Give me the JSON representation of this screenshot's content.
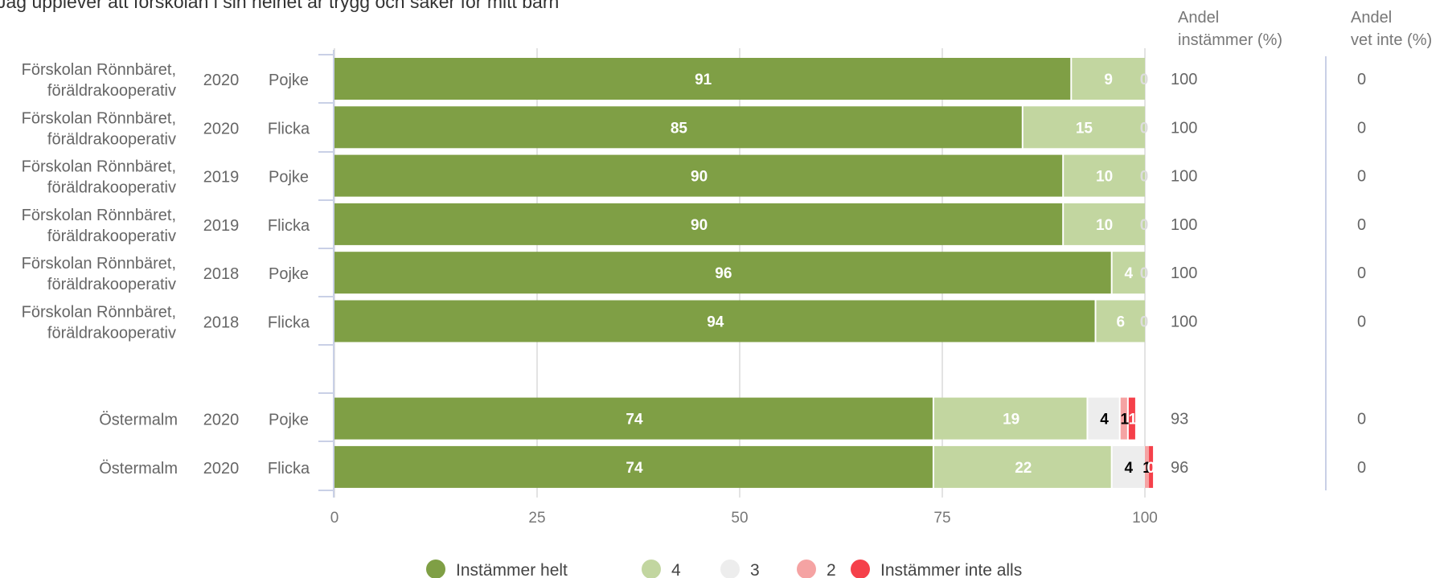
{
  "title": "Jag upplever att förskolan i sin helhet är trygg och säker för mitt barn",
  "columns": {
    "andel_instammer": [
      "Andel",
      "instämmer (%)"
    ],
    "andel_vet_inte": [
      "Andel",
      "vet inte (%)"
    ]
  },
  "colors": {
    "Instämmer helt": "#7f9f45",
    "4": "#c2d6a0",
    "3": "#ededed",
    "2": "#f5a3a3",
    "Instämmer inte alls": "#f5404a",
    "gridline": "#e3e3e3",
    "axis_tick": "#c9d0e6"
  },
  "chart_data": {
    "type": "bar",
    "orientation": "horizontal",
    "stacked": true,
    "title": "Jag upplever att förskolan i sin helhet är trygg och säker för mitt barn",
    "xlim": [
      0,
      100
    ],
    "x_ticks": [
      "0",
      "25",
      "50",
      "75",
      "100"
    ],
    "legend_position": "bottom",
    "grid": true,
    "series_names": [
      "Instämmer helt",
      "4",
      "3",
      "2",
      "Instämmer inte alls"
    ],
    "rows": [
      {
        "unit": [
          "Förskolan Rönnbäret,",
          "föräldrakooperativ"
        ],
        "year": "2020",
        "gender": "Pojke",
        "values": [
          91,
          9,
          0,
          0,
          0
        ],
        "labels": [
          "91",
          "9",
          "0",
          "",
          ""
        ],
        "andel_instammer": "100",
        "andel_vet_inte": "0",
        "gap_before": false
      },
      {
        "unit": [
          "Förskolan Rönnbäret,",
          "föräldrakooperativ"
        ],
        "year": "2020",
        "gender": "Flicka",
        "values": [
          85,
          15,
          0,
          0,
          0
        ],
        "labels": [
          "85",
          "15",
          "0",
          "",
          ""
        ],
        "andel_instammer": "100",
        "andel_vet_inte": "0",
        "gap_before": false
      },
      {
        "unit": [
          "Förskolan Rönnbäret,",
          "föräldrakooperativ"
        ],
        "year": "2019",
        "gender": "Pojke",
        "values": [
          90,
          10,
          0,
          0,
          0
        ],
        "labels": [
          "90",
          "10",
          "0",
          "",
          ""
        ],
        "andel_instammer": "100",
        "andel_vet_inte": "0",
        "gap_before": false
      },
      {
        "unit": [
          "Förskolan Rönnbäret,",
          "föräldrakooperativ"
        ],
        "year": "2019",
        "gender": "Flicka",
        "values": [
          90,
          10,
          0,
          0,
          0
        ],
        "labels": [
          "90",
          "10",
          "0",
          "",
          ""
        ],
        "andel_instammer": "100",
        "andel_vet_inte": "0",
        "gap_before": false
      },
      {
        "unit": [
          "Förskolan Rönnbäret,",
          "föräldrakooperativ"
        ],
        "year": "2018",
        "gender": "Pojke",
        "values": [
          96,
          4,
          0,
          0,
          0
        ],
        "labels": [
          "96",
          "4",
          "0",
          "",
          ""
        ],
        "andel_instammer": "100",
        "andel_vet_inte": "0",
        "gap_before": false
      },
      {
        "unit": [
          "Förskolan Rönnbäret,",
          "föräldrakooperativ"
        ],
        "year": "2018",
        "gender": "Flicka",
        "values": [
          94,
          6,
          0,
          0,
          0
        ],
        "labels": [
          "94",
          "6",
          "0",
          "",
          ""
        ],
        "andel_instammer": "100",
        "andel_vet_inte": "0",
        "gap_before": false
      },
      {
        "unit": [
          "Östermalm"
        ],
        "year": "2020",
        "gender": "Pojke",
        "values": [
          74,
          19,
          4,
          1,
          1
        ],
        "labels": [
          "74",
          "19",
          "4",
          "1",
          "1"
        ],
        "andel_instammer": "93",
        "andel_vet_inte": "0",
        "gap_before": true
      },
      {
        "unit": [
          "Östermalm"
        ],
        "year": "2020",
        "gender": "Flicka",
        "values": [
          74,
          22,
          4,
          0.5,
          0.5
        ],
        "labels": [
          "74",
          "22",
          "4",
          "1",
          "0"
        ],
        "andel_instammer": "96",
        "andel_vet_inte": "0",
        "gap_before": false
      }
    ]
  }
}
